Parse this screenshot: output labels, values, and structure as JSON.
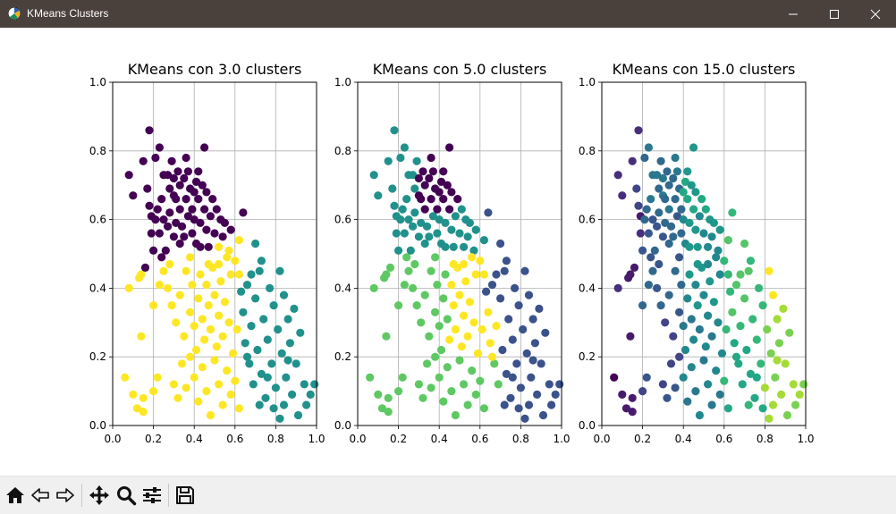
{
  "window": {
    "title": "KMeans Clusters",
    "controls": {
      "minimize": "minimize-icon",
      "maximize": "maximize-icon",
      "close": "close-icon"
    }
  },
  "toolbar": {
    "buttons": [
      {
        "name": "home-button",
        "icon": "home-icon"
      },
      {
        "name": "back-button",
        "icon": "arrow-left-icon"
      },
      {
        "name": "forward-button",
        "icon": "arrow-right-icon"
      },
      {
        "name": "pan-button",
        "icon": "move-icon"
      },
      {
        "name": "zoom-button",
        "icon": "zoom-icon"
      },
      {
        "name": "configure-subplots-button",
        "icon": "sliders-icon"
      },
      {
        "name": "save-button",
        "icon": "save-icon"
      }
    ]
  },
  "colors": {
    "viridis_palette": [
      "#440154",
      "#3b528b",
      "#21918c",
      "#5ec962",
      "#fde725"
    ],
    "grid": "#b0b0b0",
    "titlebar": "#4a403c",
    "toolbar": "#f0f0f0"
  },
  "chart_data": [
    {
      "type": "scatter",
      "title": "KMeans con 3.0 clusters",
      "xlim": [
        0.0,
        1.0
      ],
      "ylim": [
        0.0,
        1.0
      ],
      "xticks": [
        "0.0",
        "0.2",
        "0.4",
        "0.6",
        "0.8",
        "1.0"
      ],
      "yticks": [
        "0.0",
        "0.2",
        "0.4",
        "0.6",
        "0.8",
        "1.0"
      ],
      "grid": true,
      "clusters": 3,
      "cluster_colors": [
        "#440154",
        "#21918c",
        "#fde725"
      ]
    },
    {
      "type": "scatter",
      "title": "KMeans con 5.0 clusters",
      "xlim": [
        0.0,
        1.0
      ],
      "ylim": [
        0.0,
        1.0
      ],
      "xticks": [
        "0.0",
        "0.2",
        "0.4",
        "0.6",
        "0.8",
        "1.0"
      ],
      "yticks": [
        "0.0",
        "0.2",
        "0.4",
        "0.6",
        "0.8",
        "1.0"
      ],
      "grid": true,
      "clusters": 5,
      "cluster_colors": [
        "#440154",
        "#3b528b",
        "#21918c",
        "#5ec962",
        "#fde725"
      ]
    },
    {
      "type": "scatter",
      "title": "KMeans con 15.0 clusters",
      "xlim": [
        0.0,
        1.0
      ],
      "ylim": [
        0.0,
        1.0
      ],
      "xticks": [
        "0.0",
        "0.2",
        "0.4",
        "0.6",
        "0.8",
        "1.0"
      ],
      "yticks": [
        "0.0",
        "0.2",
        "0.4",
        "0.6",
        "0.8",
        "1.0"
      ],
      "grid": true,
      "clusters": 15,
      "cluster_colors": [
        "#440154",
        "#481a6c",
        "#472f7d",
        "#414487",
        "#39568c",
        "#31688e",
        "#2a788e",
        "#23888e",
        "#1f988b",
        "#22a884",
        "#35b779",
        "#54c568",
        "#7ad151",
        "#a5db36",
        "#fde725"
      ]
    }
  ],
  "points": [
    [
      0.06,
      0.14
    ],
    [
      0.08,
      0.4
    ],
    [
      0.08,
      0.73
    ],
    [
      0.1,
      0.09
    ],
    [
      0.1,
      0.67
    ],
    [
      0.12,
      0.05
    ],
    [
      0.13,
      0.43
    ],
    [
      0.14,
      0.26
    ],
    [
      0.14,
      0.44
    ],
    [
      0.15,
      0.04
    ],
    [
      0.15,
      0.77
    ],
    [
      0.15,
      0.08
    ],
    [
      0.16,
      0.46
    ],
    [
      0.17,
      0.69
    ],
    [
      0.18,
      0.86
    ],
    [
      0.18,
      0.64
    ],
    [
      0.19,
      0.61
    ],
    [
      0.19,
      0.56
    ],
    [
      0.2,
      0.51
    ],
    [
      0.2,
      0.35
    ],
    [
      0.2,
      0.1
    ],
    [
      0.21,
      0.6
    ],
    [
      0.21,
      0.78
    ],
    [
      0.22,
      0.14
    ],
    [
      0.22,
      0.63
    ],
    [
      0.23,
      0.81
    ],
    [
      0.23,
      0.56
    ],
    [
      0.24,
      0.66
    ],
    [
      0.24,
      0.49
    ],
    [
      0.25,
      0.73
    ],
    [
      0.25,
      0.6
    ],
    [
      0.26,
      0.51
    ],
    [
      0.27,
      0.58
    ],
    [
      0.27,
      0.73
    ],
    [
      0.28,
      0.69
    ],
    [
      0.28,
      0.62
    ],
    [
      0.29,
      0.77
    ],
    [
      0.3,
      0.72
    ],
    [
      0.3,
      0.55
    ],
    [
      0.3,
      0.67
    ],
    [
      0.31,
      0.66
    ],
    [
      0.31,
      0.59
    ],
    [
      0.32,
      0.74
    ],
    [
      0.33,
      0.63
    ],
    [
      0.33,
      0.7
    ],
    [
      0.34,
      0.58
    ],
    [
      0.35,
      0.72
    ],
    [
      0.35,
      0.55
    ],
    [
      0.36,
      0.66
    ],
    [
      0.36,
      0.78
    ],
    [
      0.37,
      0.61
    ],
    [
      0.37,
      0.74
    ],
    [
      0.38,
      0.69
    ],
    [
      0.39,
      0.56
    ],
    [
      0.39,
      0.63
    ],
    [
      0.4,
      0.68
    ],
    [
      0.4,
      0.6
    ],
    [
      0.41,
      0.71
    ],
    [
      0.41,
      0.53
    ],
    [
      0.42,
      0.66
    ],
    [
      0.42,
      0.74
    ],
    [
      0.43,
      0.59
    ],
    [
      0.44,
      0.7
    ],
    [
      0.45,
      0.63
    ],
    [
      0.45,
      0.81
    ],
    [
      0.46,
      0.57
    ],
    [
      0.46,
      0.68
    ],
    [
      0.47,
      0.52
    ],
    [
      0.48,
      0.61
    ],
    [
      0.49,
      0.66
    ],
    [
      0.5,
      0.56
    ],
    [
      0.51,
      0.63
    ],
    [
      0.52,
      0.52
    ],
    [
      0.53,
      0.6
    ],
    [
      0.54,
      0.55
    ],
    [
      0.55,
      0.59
    ],
    [
      0.57,
      0.51
    ],
    [
      0.58,
      0.57
    ],
    [
      0.6,
      0.48
    ],
    [
      0.62,
      0.54
    ],
    [
      0.64,
      0.62
    ],
    [
      0.25,
      0.45
    ],
    [
      0.27,
      0.4
    ],
    [
      0.29,
      0.35
    ],
    [
      0.31,
      0.3
    ],
    [
      0.33,
      0.38
    ],
    [
      0.35,
      0.26
    ],
    [
      0.36,
      0.45
    ],
    [
      0.38,
      0.33
    ],
    [
      0.39,
      0.41
    ],
    [
      0.4,
      0.29
    ],
    [
      0.41,
      0.22
    ],
    [
      0.42,
      0.37
    ],
    [
      0.43,
      0.44
    ],
    [
      0.44,
      0.31
    ],
    [
      0.45,
      0.25
    ],
    [
      0.46,
      0.41
    ],
    [
      0.47,
      0.35
    ],
    [
      0.48,
      0.28
    ],
    [
      0.49,
      0.46
    ],
    [
      0.5,
      0.38
    ],
    [
      0.51,
      0.23
    ],
    [
      0.52,
      0.32
    ],
    [
      0.53,
      0.42
    ],
    [
      0.54,
      0.26
    ],
    [
      0.55,
      0.36
    ],
    [
      0.56,
      0.49
    ],
    [
      0.57,
      0.3
    ],
    [
      0.58,
      0.44
    ],
    [
      0.59,
      0.21
    ],
    [
      0.3,
      0.12
    ],
    [
      0.32,
      0.08
    ],
    [
      0.34,
      0.18
    ],
    [
      0.36,
      0.11
    ],
    [
      0.38,
      0.2
    ],
    [
      0.4,
      0.14
    ],
    [
      0.42,
      0.07
    ],
    [
      0.44,
      0.17
    ],
    [
      0.46,
      0.1
    ],
    [
      0.48,
      0.03
    ],
    [
      0.5,
      0.19
    ],
    [
      0.52,
      0.12
    ],
    [
      0.54,
      0.06
    ],
    [
      0.56,
      0.16
    ],
    [
      0.58,
      0.09
    ],
    [
      0.6,
      0.13
    ],
    [
      0.62,
      0.05
    ],
    [
      0.64,
      0.33
    ],
    [
      0.65,
      0.24
    ],
    [
      0.66,
      0.41
    ],
    [
      0.67,
      0.18
    ],
    [
      0.68,
      0.29
    ],
    [
      0.69,
      0.12
    ],
    [
      0.7,
      0.37
    ],
    [
      0.71,
      0.22
    ],
    [
      0.72,
      0.45
    ],
    [
      0.73,
      0.15
    ],
    [
      0.74,
      0.31
    ],
    [
      0.75,
      0.08
    ],
    [
      0.76,
      0.25
    ],
    [
      0.77,
      0.4
    ],
    [
      0.78,
      0.18
    ],
    [
      0.79,
      0.35
    ],
    [
      0.8,
      0.11
    ],
    [
      0.81,
      0.28
    ],
    [
      0.82,
      0.45
    ],
    [
      0.83,
      0.21
    ],
    [
      0.84,
      0.38
    ],
    [
      0.85,
      0.14
    ],
    [
      0.86,
      0.31
    ],
    [
      0.87,
      0.24
    ],
    [
      0.88,
      0.09
    ],
    [
      0.89,
      0.34
    ],
    [
      0.9,
      0.18
    ],
    [
      0.92,
      0.27
    ],
    [
      0.94,
      0.12
    ],
    [
      0.95,
      0.06
    ],
    [
      0.97,
      0.09
    ],
    [
      0.99,
      0.12
    ],
    [
      0.7,
      0.53
    ],
    [
      0.73,
      0.48
    ],
    [
      0.68,
      0.44
    ],
    [
      0.63,
      0.39
    ],
    [
      0.61,
      0.28
    ],
    [
      0.66,
      0.2
    ],
    [
      0.72,
      0.06
    ],
    [
      0.79,
      0.05
    ],
    [
      0.84,
      0.06
    ],
    [
      0.91,
      0.03
    ],
    [
      0.86,
      0.19
    ],
    [
      0.76,
      0.14
    ],
    [
      0.82,
      0.02
    ],
    [
      0.62,
      0.44
    ],
    [
      0.47,
      0.47
    ],
    [
      0.52,
      0.47
    ],
    [
      0.43,
      0.52
    ],
    [
      0.38,
      0.49
    ],
    [
      0.33,
      0.53
    ],
    [
      0.28,
      0.47
    ],
    [
      0.23,
      0.41
    ]
  ]
}
